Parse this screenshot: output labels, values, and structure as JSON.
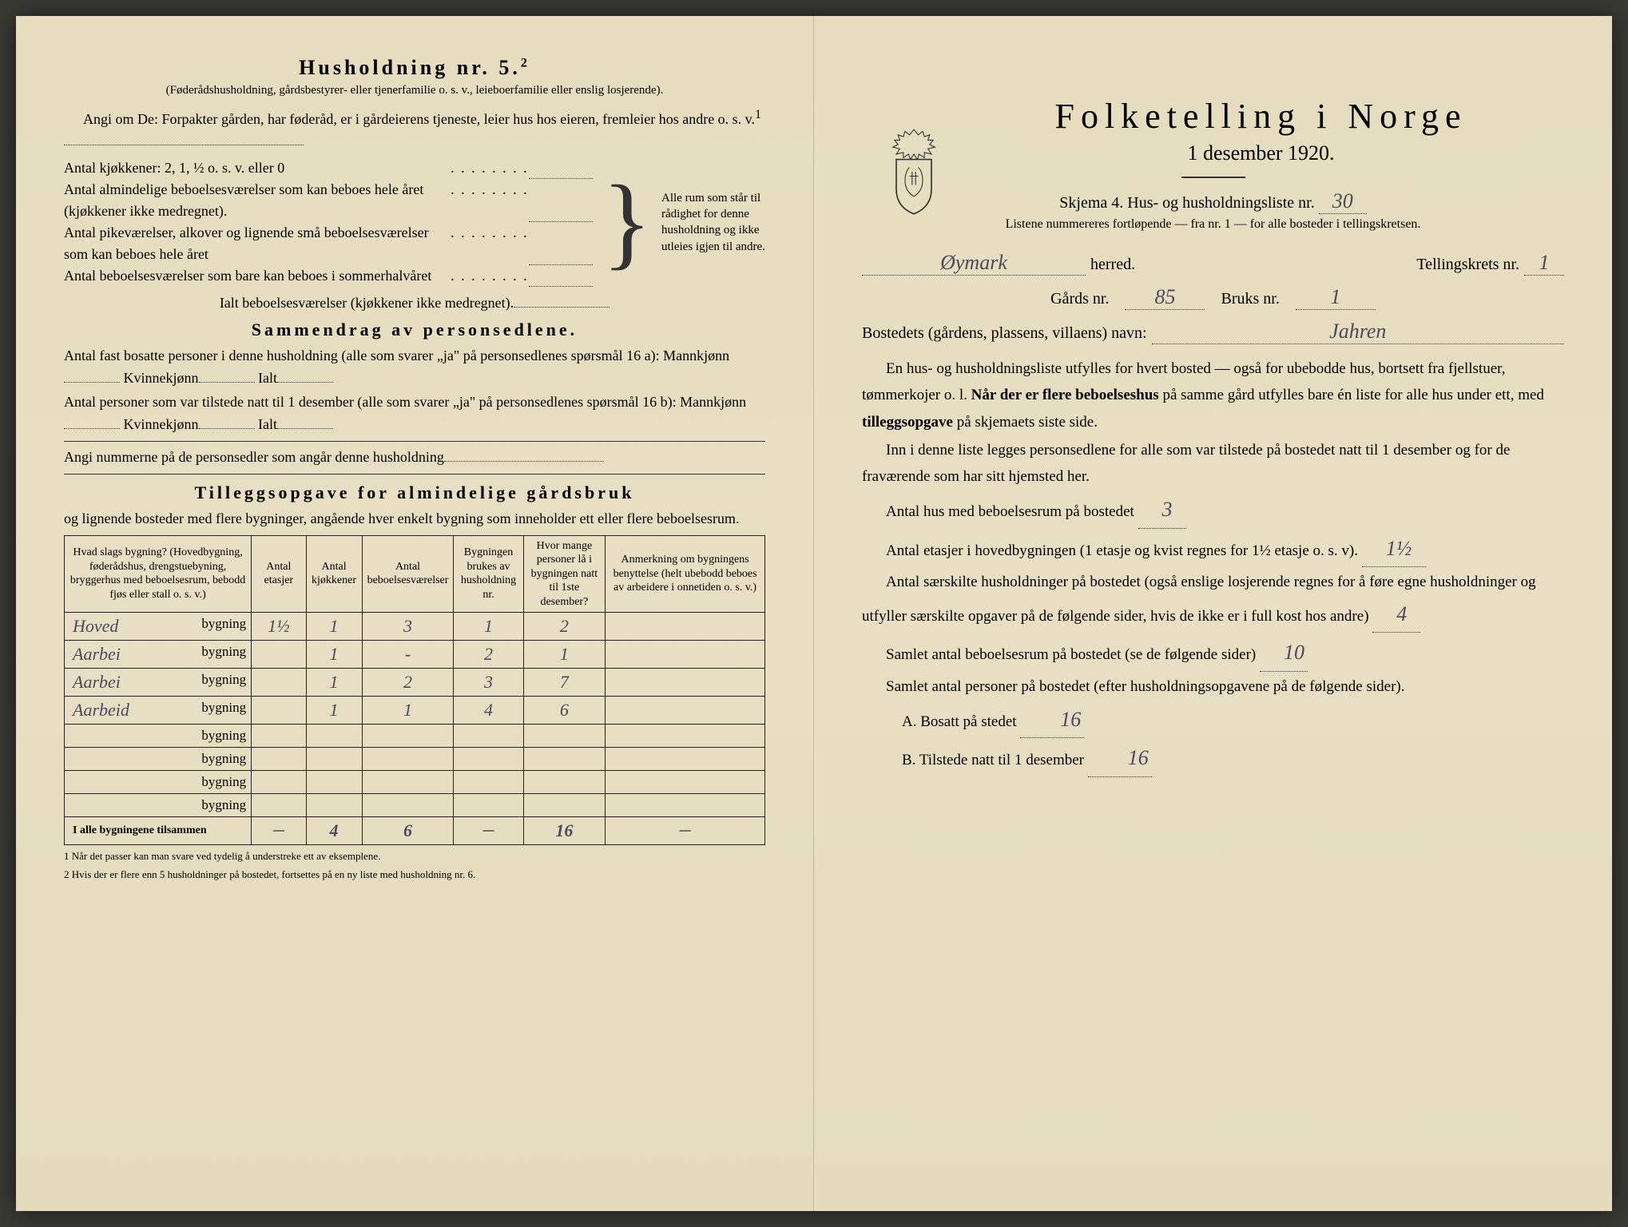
{
  "paper_bg": "#e8dfc4",
  "ink": "#222222",
  "handwriting_color": "#4a4a5a",
  "left": {
    "title": "Husholdning nr. 5.",
    "title_sup": "2",
    "subtitle": "(Føderådshusholdning, gårdsbestyrer- eller tjenerfamilie o. s. v., leieboerfamilie eller enslig losjerende).",
    "intro": "Angi om De: Forpakter gården, har føderåd, er i gårdeierens tjeneste, leier hus hos eieren, fremleier hos andre o. s. v.",
    "intro_sup": "1",
    "kitchens_label": "Antal kjøkkener: 2, 1, ½ o. s. v. eller 0",
    "rooms": [
      "Antal almindelige beboelsesværelser som kan beboes hele året (kjøkkener ikke medregnet).",
      "Antal pikeværelser, alkover og lignende små beboelsesværelser som kan beboes hele året",
      "Antal beboelsesværelser som bare kan beboes i sommerhalvåret"
    ],
    "brace_note": "Alle rum som står til rådighet for denne husholdning og ikke utleies igjen til andre.",
    "rooms_total": "Ialt beboelsesværelser (kjøkkener ikke medregnet).",
    "summary_title": "Sammendrag av personsedlene.",
    "summary_p1": "Antal fast bosatte personer i denne husholdning (alle som svarer „ja\" på personsedlenes spørsmål 16 a): Mannkjønn",
    "kvinne": "Kvinnekjønn",
    "ialt": "Ialt",
    "summary_p2": "Antal personer som var tilstede natt til 1 desember (alle som svarer „ja\" på personsedlenes spørsmål 16 b): Mannkjønn",
    "angi_nr": "Angi nummerne på de personsedler som angår denne husholdning",
    "tillegg_title": "Tilleggsopgave for almindelige gårdsbruk",
    "tillegg_sub": "og lignende bosteder med flere bygninger, angående hver enkelt bygning som inneholder ett eller flere beboelsesrum.",
    "table": {
      "headers": [
        "Hvad slags bygning?\n(Hovedbygning, føderådshus, drengstuebyning, bryggerhus med beboelsesrum, bebodd fjøs eller stall o. s. v.)",
        "Antal etasjer",
        "Antal kjøkkener",
        "Antal beboelsesværelser",
        "Bygningen brukes av husholdning nr.",
        "Hvor mange personer lå i bygningen natt til 1ste desember?",
        "Anmerkning om bygningens benyttelse (helt ubebodd beboes av arbeidere i onnetiden o. s. v.)"
      ],
      "rows": [
        {
          "name": "Hoved",
          "etasjer": "1½",
          "kjokken": "1",
          "vaer": "3",
          "hush": "1",
          "pers": "2",
          "anm": ""
        },
        {
          "name": "Aarbei",
          "etasjer": "",
          "kjokken": "1",
          "vaer": "-",
          "hush": "2",
          "pers": "1",
          "anm": ""
        },
        {
          "name": "Aarbei",
          "etasjer": "",
          "kjokken": "1",
          "vaer": "2",
          "hush": "3",
          "pers": "7",
          "anm": ""
        },
        {
          "name": "Aarbeid",
          "etasjer": "",
          "kjokken": "1",
          "vaer": "1",
          "hush": "4",
          "pers": "6",
          "anm": ""
        },
        {
          "name": "",
          "etasjer": "",
          "kjokken": "",
          "vaer": "",
          "hush": "",
          "pers": "",
          "anm": ""
        },
        {
          "name": "",
          "etasjer": "",
          "kjokken": "",
          "vaer": "",
          "hush": "",
          "pers": "",
          "anm": ""
        },
        {
          "name": "",
          "etasjer": "",
          "kjokken": "",
          "vaer": "",
          "hush": "",
          "pers": "",
          "anm": ""
        },
        {
          "name": "",
          "etasjer": "",
          "kjokken": "",
          "vaer": "",
          "hush": "",
          "pers": "",
          "anm": ""
        }
      ],
      "bygning_suffix": "bygning",
      "total_label": "I alle bygningene tilsammen",
      "total": {
        "etasjer": "—",
        "kjokken": "4",
        "vaer": "6",
        "hush": "—",
        "pers": "16",
        "anm": "—"
      }
    },
    "footnotes": [
      "1  Når det passer kan man svare ved tydelig å understreke ett av eksemplene.",
      "2  Hvis der er flere enn 5 husholdninger på bostedet, fortsettes på en ny liste med husholdning nr. 6."
    ]
  },
  "right": {
    "title": "Folketelling i Norge",
    "date": "1 desember 1920.",
    "skjema": "Skjema 4.  Hus- og husholdningsliste nr.",
    "skjema_nr": "30",
    "liste_note": "Listene nummereres fortløpende — fra nr. 1 — for alle bosteder i tellingskretsen.",
    "herred_value": "Øymark",
    "herred_label": "herred.",
    "krets_label": "Tellingskrets nr.",
    "krets_nr": "1",
    "gards_label": "Gårds nr.",
    "gards_nr": "85",
    "bruks_label": "Bruks nr.",
    "bruks_nr": "1",
    "bosted_label": "Bostedets (gårdens, plassens, villaens) navn:",
    "bosted_value": "Jahren",
    "body1": "En hus- og husholdningsliste utfylles for hvert bosted — også for ubebodde hus, bortsett fra fjellstuer, tømmerkojer o. l.  Når der er flere beboelseshus på samme gård utfylles bare én liste for alle hus under ett, med tilleggsopgave på skjemaets siste side.",
    "body2": "Inn i denne liste legges personsedlene for alle som var tilstede på bostedet natt til 1 desember og for de fraværende som har sitt hjemsted her.",
    "hus_label": "Antal hus med beboelsesrum på bostedet",
    "hus_val": "3",
    "etasjer_label_a": "Antal etasjer i hovedbygningen (1 etasje og kvist regnes for 1½",
    "etasjer_label_b": "etasje o. s. v).",
    "etasjer_val": "1½",
    "hush_label_a": "Antal særskilte husholdninger på bostedet (også enslige losjerende regnes for å føre egne husholdninger og utfyller særskilte opgaver på de følgende sider, hvis de ikke er i full kost hos andre)",
    "hush_val": "4",
    "samlet_rum_label": "Samlet antal beboelsesrum på bostedet (se de følgende sider)",
    "samlet_rum_val": "10",
    "samlet_pers_label": "Samlet antal personer på bostedet (efter husholdningsopgavene på de følgende sider).",
    "a_label": "A.  Bosatt på stedet",
    "a_val": "16",
    "b_label": "B.  Tilstede natt til 1 desember",
    "b_val": "16"
  }
}
